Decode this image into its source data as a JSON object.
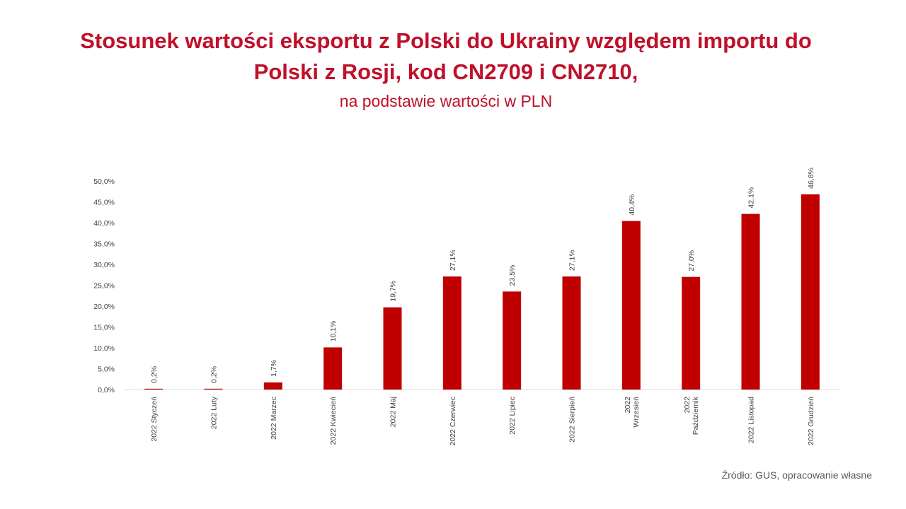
{
  "title": {
    "line1": "Stosunek wartości eksportu z Polski do Ukrainy względem importu do",
    "line2": "Polski z Rosji, kod CN2709 i CN2710,",
    "subtitle": "na podstawie wartości w PLN"
  },
  "source": "Źródło: GUS, opracowanie własne",
  "colors": {
    "bar": "#c00000",
    "title": "#c0102a",
    "axis_text": "#404040",
    "axis_line": "#d9d9d9"
  },
  "chart_data": {
    "type": "bar",
    "categories": [
      [
        "2022 Styczeń"
      ],
      [
        "2022 Luty"
      ],
      [
        "2022 Marzec"
      ],
      [
        "2022 Kwiecień"
      ],
      [
        "2022 Maj"
      ],
      [
        "2022 Czerwiec"
      ],
      [
        "2022 Lipiec"
      ],
      [
        "2022 Sierpień"
      ],
      [
        "2022",
        "Wrzesień"
      ],
      [
        "2022",
        "Październik"
      ],
      [
        "2022 Listopad"
      ],
      [
        "2022 Grudzień"
      ]
    ],
    "values": [
      0.2,
      0.2,
      1.7,
      10.1,
      19.7,
      27.1,
      23.5,
      27.1,
      40.4,
      27.0,
      42.1,
      46.8
    ],
    "data_labels": [
      "0,2%",
      "0,2%",
      "1,7%",
      "10,1%",
      "19,7%",
      "27,1%",
      "23,5%",
      "27,1%",
      "40,4%",
      "27,0%",
      "42,1%",
      "46,8%"
    ],
    "y_ticks": [
      "0,0%",
      "5,0%",
      "10,0%",
      "15,0%",
      "20,0%",
      "25,0%",
      "30,0%",
      "35,0%",
      "40,0%",
      "45,0%",
      "50,0%"
    ],
    "ylim": [
      0,
      50
    ],
    "ytick_step": 5,
    "grid": false,
    "legend": "none"
  }
}
